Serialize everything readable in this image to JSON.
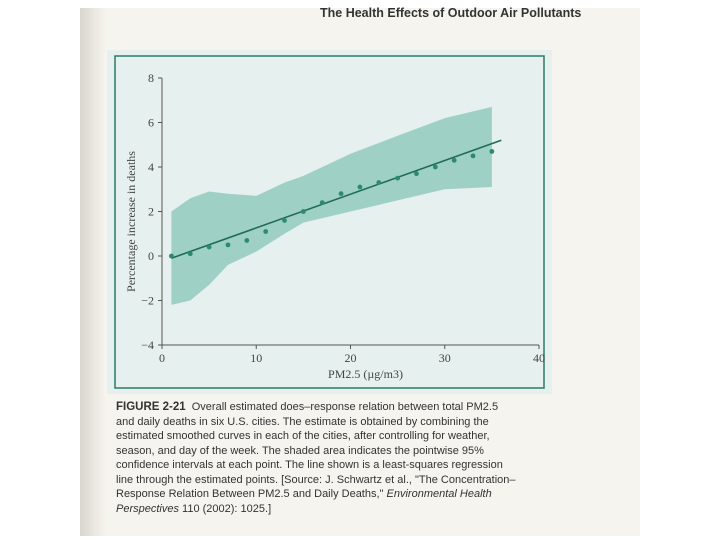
{
  "running_head": "The Health Effects of Outdoor Air Pollutants",
  "caption": {
    "label": "FIGURE 2-21",
    "lines": [
      "Overall estimated does–response relation between total PM2.5",
      "and daily deaths in six U.S. cities. The estimate is obtained by combining the",
      "estimated smoothed curves in each of the cities, after controlling for weather,",
      "season, and day of the week. The shaded area indicates the pointwise 95%",
      "confidence intervals at each point. The line shown is a least-squares regression",
      "line through the estimated points. [Source: J. Schwartz et al., \"The Concentration–",
      "Response Relation Between PM2.5 and Daily Deaths,\""
    ],
    "journal": "Environmental Health",
    "journal_cont": "Perspectives",
    "citation_end": "110 (2002): 1025.]"
  },
  "colors": {
    "band": "#9fd0c6",
    "line": "#1f6b55",
    "points": "#2c8a70",
    "frame": "#2c7a66",
    "axis": "#555555"
  },
  "chart_data": {
    "type": "line",
    "xlabel": "PM2.5 (µg/m3)",
    "ylabel": "Percentage increase in deaths",
    "xlim": [
      0,
      40
    ],
    "ylim": [
      -4,
      8
    ],
    "x_ticks": [
      0,
      10,
      20,
      30,
      40
    ],
    "y_ticks": [
      -4,
      -2,
      0,
      2,
      4,
      6,
      8
    ],
    "points": {
      "x": [
        1,
        3,
        5,
        7,
        9,
        11,
        13,
        15,
        17,
        19,
        21,
        23,
        25,
        27,
        29,
        31,
        33,
        35
      ],
      "y": [
        0.0,
        0.1,
        0.4,
        0.5,
        0.7,
        1.1,
        1.6,
        2.0,
        2.4,
        2.8,
        3.1,
        3.3,
        3.5,
        3.7,
        4.0,
        4.3,
        4.5,
        4.7
      ]
    },
    "regression_line": {
      "x": [
        1,
        36
      ],
      "y": [
        -0.1,
        5.2
      ]
    },
    "confidence_band": {
      "x": [
        1,
        3,
        5,
        7,
        10,
        13,
        15,
        20,
        25,
        30,
        35
      ],
      "lower": [
        -2.2,
        -2.0,
        -1.3,
        -0.4,
        0.2,
        1.0,
        1.5,
        2.0,
        2.5,
        3.0,
        3.1
      ],
      "upper": [
        2.0,
        2.6,
        2.9,
        2.8,
        2.7,
        3.3,
        3.6,
        4.6,
        5.4,
        6.2,
        6.7
      ]
    }
  }
}
